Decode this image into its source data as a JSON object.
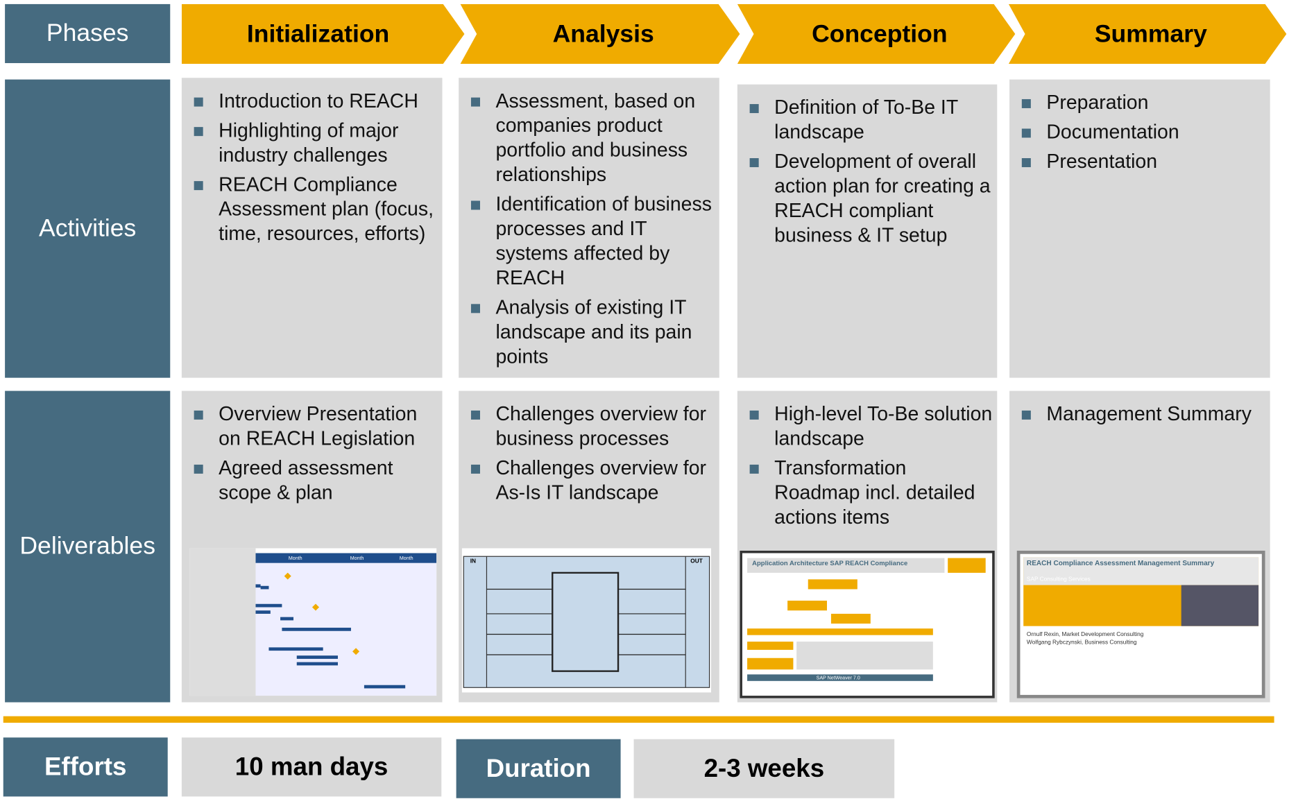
{
  "header": {
    "label": "Phases",
    "phases": [
      "Initialization",
      "Analysis",
      "Conception",
      "Summary"
    ]
  },
  "activities": {
    "label": "Activities",
    "columns": [
      [
        "Introduction to REACH",
        "Highlighting of major industry challenges",
        "REACH Compliance Assessment plan (focus, time, resources, efforts)"
      ],
      [
        "Assessment, based on companies product portfolio and business relationships",
        "Identification of business processes and IT systems affected by REACH",
        "Analysis of existing IT landscape and its pain points"
      ],
      [
        "Definition of To-Be IT landscape",
        "Development of overall action plan for creating a REACH compliant business & IT setup"
      ],
      [
        "Preparation",
        "Documentation",
        "Presentation"
      ]
    ]
  },
  "deliverables": {
    "label": "Deliverables",
    "columns": [
      [
        "Overview Presentation on REACH Legislation",
        "Agreed assessment scope & plan"
      ],
      [
        "Challenges overview for business processes",
        "Challenges overview for As-Is IT landscape"
      ],
      [
        "High-level To-Be solution landscape",
        "Transformation Roadmap incl. detailed actions items"
      ],
      [
        "Management Summary"
      ]
    ]
  },
  "thumbnails": {
    "gantt": [
      "Month",
      "Month",
      "Month"
    ],
    "process": [
      "IN",
      "OUT"
    ],
    "architecture": [
      "Application Architecture SAP REACH Compliance",
      "SAP NetWeaver 7.0"
    ],
    "summary": [
      "REACH Compliance Assessment Management Summary",
      "SAP Consulting Services",
      "Ornulf Rexin, Market Development Consulting",
      "Wolfgang Rybczynski, Business Consulting"
    ]
  },
  "footer": {
    "efforts_label": "Efforts",
    "efforts_value": "10 man days",
    "duration_label": "Duration",
    "duration_value": "2-3 weeks"
  }
}
